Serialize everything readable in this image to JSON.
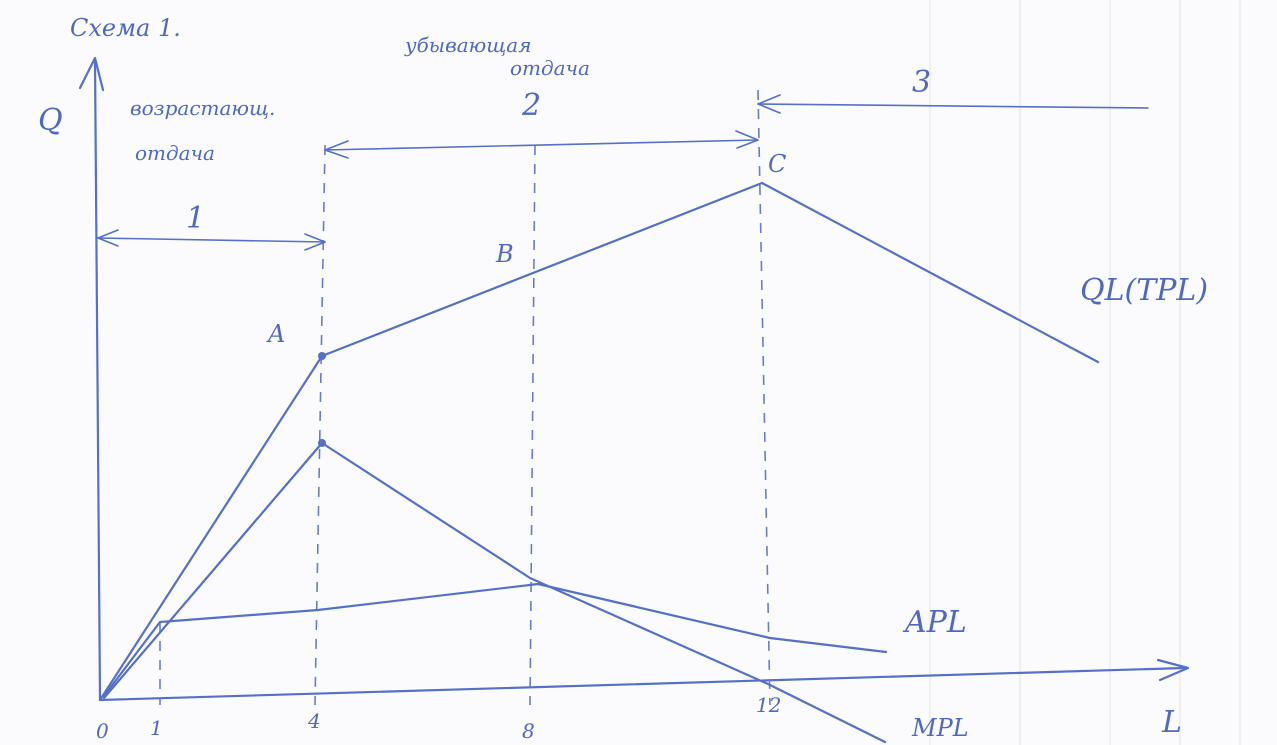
{
  "title": "Схема 1.",
  "axes": {
    "y_label": "Q",
    "x_label": "L",
    "origin": "0"
  },
  "ticks": [
    "1",
    "4",
    "8",
    "12"
  ],
  "stages": [
    {
      "number": "1",
      "label_line1": "возрастающ.",
      "label_line2": "отдача"
    },
    {
      "number": "2",
      "label_line1": "убывающая",
      "label_line2": "отдача"
    },
    {
      "number": "3"
    }
  ],
  "points": {
    "a": "A",
    "b": "B",
    "c": "C"
  },
  "curves": {
    "tp": "QL(TPL)",
    "ap": "APL",
    "mp": "MPL"
  },
  "colors": {
    "ink": "#5470c8",
    "paper": "#fbfbfd"
  }
}
